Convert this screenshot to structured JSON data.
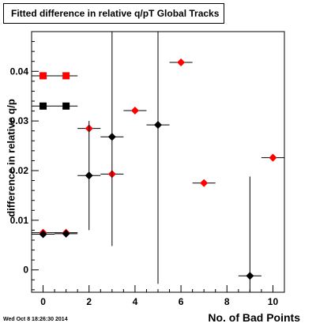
{
  "chart_data": {
    "type": "scatter",
    "title": "Fitted difference in relative q/pT  Global Tracks",
    "xlabel": "No. of Bad Points",
    "ylabel": "difference in relative q/p",
    "xlim": [
      -0.5,
      10.5
    ],
    "ylim": [
      -0.0045,
      0.048
    ],
    "x_ticks": [
      "0",
      "2",
      "4",
      "6",
      "8",
      "10"
    ],
    "y_ticks": [
      "0",
      "0.01",
      "0.02",
      "0.03",
      "0.04"
    ],
    "grid": false,
    "series": [
      {
        "marker": "square",
        "color": "#ff0000",
        "points": [
          {
            "x": 0,
            "y": 0.0391,
            "xerr": 0.5,
            "yerr": 0
          },
          {
            "x": 1,
            "y": 0.0391,
            "xerr": 0.5,
            "yerr": 0
          }
        ]
      },
      {
        "marker": "square",
        "color": "#000000",
        "points": [
          {
            "x": 0,
            "y": 0.033,
            "xerr": 0.5,
            "yerr": 0
          },
          {
            "x": 1,
            "y": 0.033,
            "xerr": 0.5,
            "yerr": 0
          }
        ]
      },
      {
        "marker": "diamond",
        "color": "#ff0000",
        "points": [
          {
            "x": 0,
            "y": 0.0075,
            "xerr": 0.5,
            "yerr": 0
          },
          {
            "x": 1,
            "y": 0.0075,
            "xerr": 0.5,
            "yerr": 0
          },
          {
            "x": 2,
            "y": 0.0285,
            "xerr": 0.5,
            "yerr": 0
          },
          {
            "x": 3,
            "y": 0.0193,
            "xerr": 0.5,
            "yerr": 0
          },
          {
            "x": 4,
            "y": 0.0321,
            "xerr": 0.5,
            "yerr": 0
          },
          {
            "x": 6,
            "y": 0.0418,
            "xerr": 0.5,
            "yerr": 0
          },
          {
            "x": 7,
            "y": 0.0175,
            "xerr": 0.5,
            "yerr": 0
          },
          {
            "x": 10,
            "y": 0.0226,
            "xerr": 0.5,
            "yerr": 0
          }
        ]
      },
      {
        "marker": "diamond",
        "color": "#000000",
        "points": [
          {
            "x": 0,
            "y": 0.0072,
            "xerr": 0.5,
            "yerr": 0
          },
          {
            "x": 1,
            "y": 0.0073,
            "xerr": 0.5,
            "yerr": 0
          },
          {
            "x": 2,
            "y": 0.019,
            "xerr": 0.5,
            "yerr": 0.011
          },
          {
            "x": 3,
            "y": 0.0268,
            "xerr": 0.5,
            "yerr": 0.022
          },
          {
            "x": 5,
            "y": 0.0292,
            "xerr": 0.5,
            "yerr": 0.032
          },
          {
            "x": 9,
            "y": -0.0012,
            "xerr": 0.5,
            "yerr": 0.02
          }
        ]
      }
    ]
  },
  "footer": {
    "timestamp": "Wed Oct  8 18:26:30 2014"
  }
}
